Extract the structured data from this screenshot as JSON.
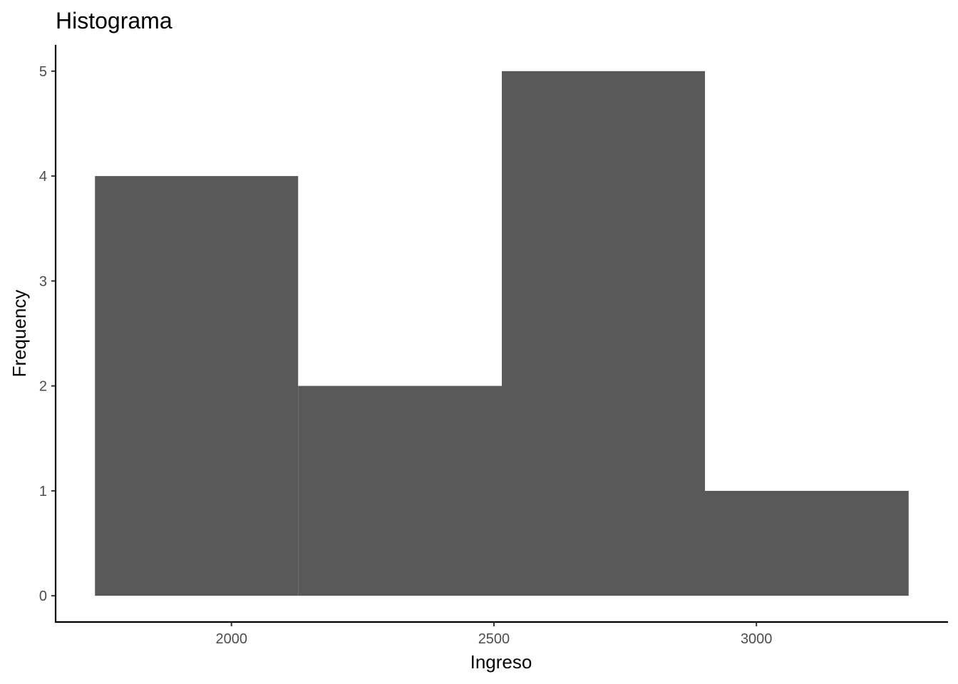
{
  "chart_data": {
    "type": "bar",
    "subtype": "histogram",
    "title": "Histograma",
    "xlabel": "Ingreso",
    "ylabel": "Frequency",
    "bins": [
      {
        "start": 1740,
        "end": 2127,
        "count": 4
      },
      {
        "start": 2127,
        "end": 2515,
        "count": 2
      },
      {
        "start": 2515,
        "end": 2902,
        "count": 5
      },
      {
        "start": 2902,
        "end": 3290,
        "count": 1
      }
    ],
    "xlim": [
      1665,
      3365
    ],
    "ylim": [
      -0.25,
      5.25
    ],
    "x_ticks": [
      2000,
      2500,
      3000
    ],
    "y_ticks": [
      0,
      1,
      2,
      3,
      4,
      5
    ],
    "grid": false,
    "legend": "none",
    "bar_color": "#595959",
    "background_color": "#ffffff"
  }
}
